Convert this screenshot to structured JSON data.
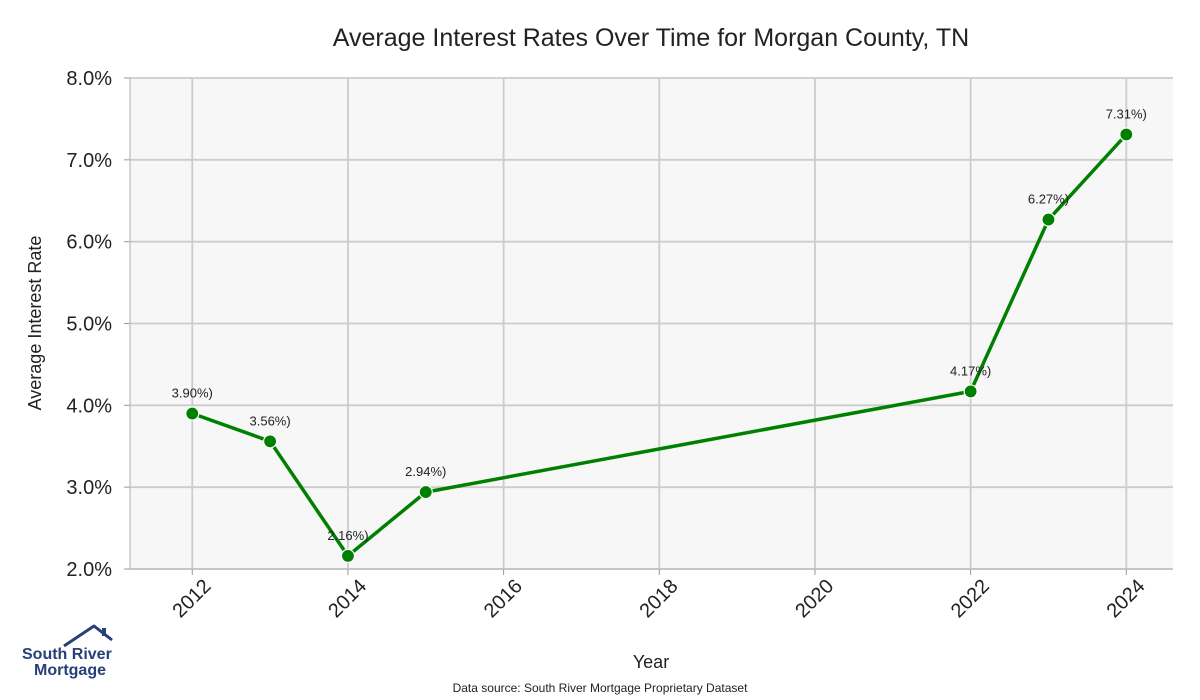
{
  "chart_data": {
    "type": "line",
    "title": "Average Interest Rates Over Time for Morgan County, TN",
    "xlabel": "Year",
    "ylabel": "Average Interest Rate",
    "xlim": [
      2011.2,
      2024.6
    ],
    "ylim": [
      2.0,
      8.0
    ],
    "x_ticks": [
      2012,
      2014,
      2016,
      2018,
      2020,
      2022,
      2024
    ],
    "x_tick_labels": [
      "2012",
      "2014",
      "2016",
      "2018",
      "2020",
      "2022",
      "2024"
    ],
    "y_ticks": [
      2,
      3,
      4,
      5,
      6,
      7,
      8
    ],
    "y_tick_labels": [
      "2.0%",
      "3.0%",
      "4.0%",
      "5.0%",
      "6.0%",
      "7.0%",
      "8.0%"
    ],
    "grid": true,
    "series": [
      {
        "name": "Average Interest Rate",
        "color": "#008000",
        "x": [
          2012,
          2013,
          2014,
          2015,
          2022,
          2023,
          2024
        ],
        "values": [
          3.9,
          3.56,
          2.16,
          2.94,
          4.17,
          6.27,
          7.31
        ],
        "labels": [
          "3.90%)",
          "3.56%)",
          "2.16%)",
          "2.94%)",
          "4.17%)",
          "6.27%)",
          "7.31%)"
        ]
      }
    ]
  },
  "logo": {
    "line1": "South River",
    "line2": "Mortgage"
  },
  "source": "Data source: South River Mortgage Proprietary Dataset",
  "colors": {
    "plot_bg": "#f7f7f7",
    "grid": "#cccccc",
    "line": "#008000",
    "logo": "#27407a"
  }
}
